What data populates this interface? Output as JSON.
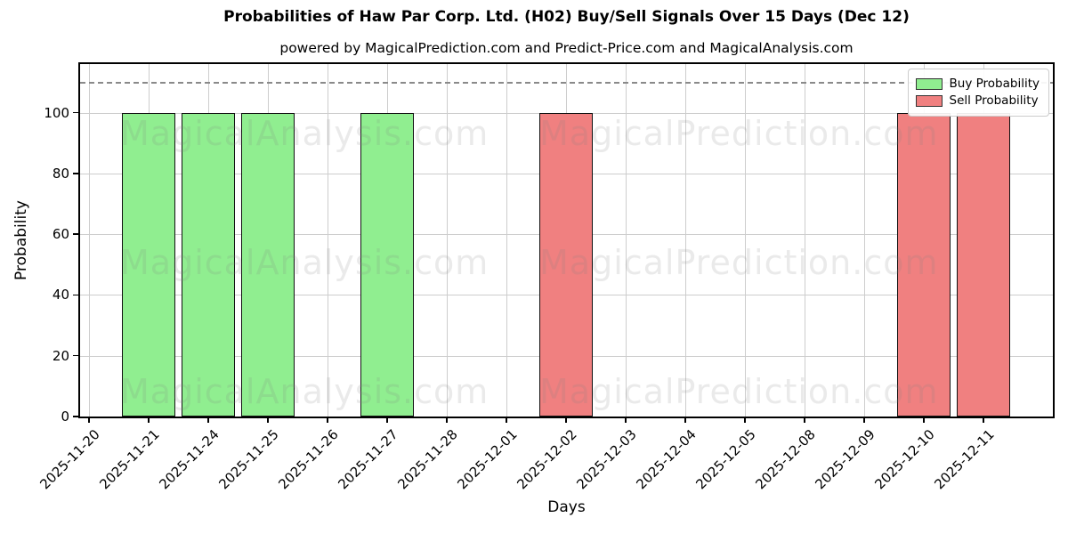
{
  "chart_data": {
    "type": "bar",
    "title": "Probabilities of Haw Par Corp. Ltd. (H02) Buy/Sell Signals Over 15 Days (Dec 12)",
    "subtitle": "powered by MagicalPrediction.com and Predict-Price.com and MagicalAnalysis.com",
    "xlabel": "Days",
    "ylabel": "Probability",
    "ylim": [
      0,
      116
    ],
    "yticks": [
      0,
      20,
      40,
      60,
      80,
      100
    ],
    "grid": true,
    "categories": [
      "2025-11-20",
      "2025-11-21",
      "2025-11-24",
      "2025-11-25",
      "2025-11-26",
      "2025-11-27",
      "2025-11-28",
      "2025-12-01",
      "2025-12-02",
      "2025-12-03",
      "2025-12-04",
      "2025-12-05",
      "2025-12-08",
      "2025-12-09",
      "2025-12-10",
      "2025-12-11"
    ],
    "series": [
      {
        "name": "Buy Probability",
        "color": "#90EE90",
        "values": [
          null,
          100,
          100,
          100,
          null,
          100,
          null,
          null,
          null,
          null,
          null,
          null,
          null,
          null,
          null,
          null
        ]
      },
      {
        "name": "Sell Probability",
        "color": "#F08080",
        "values": [
          null,
          null,
          null,
          null,
          null,
          null,
          null,
          null,
          100,
          null,
          null,
          null,
          null,
          null,
          100,
          100
        ]
      }
    ],
    "threshold_line": {
      "value": 110,
      "style": "dashed",
      "color": "#8a8a8a"
    },
    "legend": {
      "position": "upper right",
      "entries": [
        {
          "label": "Buy Probability",
          "color": "#90EE90"
        },
        {
          "label": "Sell Probability",
          "color": "#F08080"
        }
      ]
    },
    "watermarks": {
      "left": "MagicalAnalysis.com",
      "right": "MagicalPrediction.com",
      "rows": 3
    },
    "colors": {
      "grid": "#cdcdcd",
      "bar_edge": "#111111",
      "background": "#ffffff"
    }
  }
}
